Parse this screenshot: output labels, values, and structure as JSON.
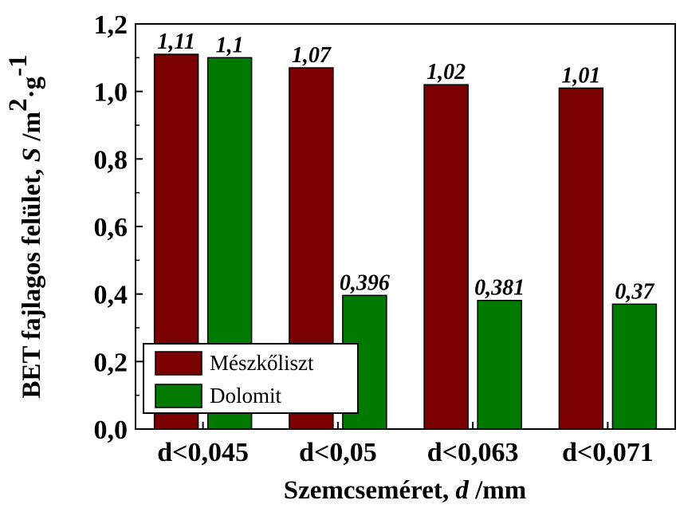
{
  "chart_data": {
    "type": "bar",
    "categories": [
      "d<0,045",
      "d<0,05",
      "d<0,063",
      "d<0,071"
    ],
    "series": [
      {
        "name": "Mészkőliszt",
        "values": [
          1.11,
          1.07,
          1.02,
          1.01
        ],
        "labels": [
          "1,11",
          "1,07",
          "1,02",
          "1,01"
        ],
        "color": "#7b0000"
      },
      {
        "name": "Dolomit",
        "values": [
          1.1,
          0.396,
          0.381,
          0.37
        ],
        "labels": [
          "1,1",
          "0,396",
          "0,381",
          "0,37"
        ],
        "color": "#007a00"
      }
    ],
    "xlabel": {
      "main": "Szemcseméret, ",
      "var": "d",
      "unit": " /mm"
    },
    "ylabel": {
      "main": "BET fajlagos felület, ",
      "var": "S",
      "unit1": " /m",
      "exp1": "2",
      "unit2": "·g",
      "exp2": "-1"
    },
    "ylim": [
      0,
      1.2
    ],
    "yticks": [
      "0,0",
      "0,2",
      "0,4",
      "0,6",
      "0,8",
      "1,0",
      "1,2"
    ],
    "legend_position": "bottom-left",
    "grid": false
  }
}
